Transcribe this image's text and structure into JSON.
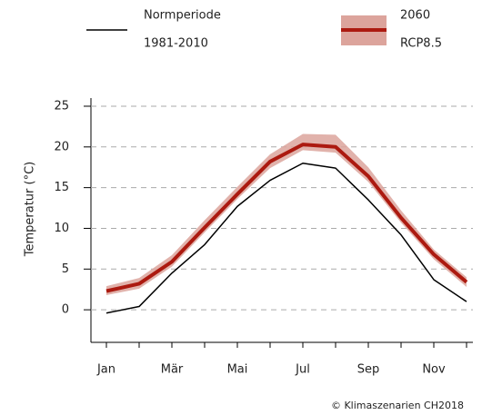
{
  "chart_data": {
    "type": "line",
    "y_label": "Temperatur (°C)",
    "credit": "© Klimaszenarien CH2018",
    "categories": [
      "Jan",
      null,
      "Mär",
      null,
      "Mai",
      null,
      "Jul",
      null,
      "Sep",
      null,
      "Nov",
      null
    ],
    "series": [
      {
        "name": [
          "Normperiode",
          "1981-2010"
        ],
        "color": "#000000",
        "values": [
          -0.4,
          0.4,
          4.5,
          8.0,
          12.7,
          15.9,
          18.0,
          17.4,
          13.5,
          9.2,
          3.7,
          1.0
        ]
      },
      {
        "name": [
          "2060",
          "RCP8.5"
        ],
        "color": "#ac1a10",
        "band_color": "#dca49c",
        "values": [
          2.3,
          3.2,
          5.9,
          10.1,
          14.2,
          18.2,
          20.3,
          20.0,
          16.4,
          11.3,
          6.8,
          3.4
        ],
        "low": [
          1.8,
          2.6,
          5.3,
          9.5,
          13.6,
          17.4,
          19.6,
          19.3,
          15.7,
          10.7,
          6.2,
          2.8
        ],
        "high": [
          2.9,
          3.9,
          6.7,
          11.0,
          15.1,
          19.1,
          21.6,
          21.5,
          17.5,
          12.2,
          7.4,
          4.0
        ]
      }
    ],
    "ylim": [
      -4,
      26
    ],
    "yticks": [
      0,
      5,
      10,
      15,
      20,
      25
    ],
    "grid": true
  }
}
